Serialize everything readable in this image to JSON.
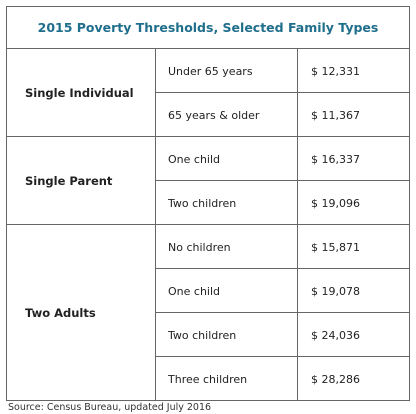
{
  "title": "2015 Poverty Thresholds, Selected Family Types",
  "groups": [
    {
      "label": "Single Individual",
      "rows": [
        [
          "Under 65 years",
          "$ 12,331"
        ],
        [
          "65 years & older",
          "$ 11,367"
        ]
      ]
    },
    {
      "label": "Single Parent",
      "rows": [
        [
          "One child",
          "$ 16,337"
        ],
        [
          "Two children",
          "$ 19,096"
        ]
      ]
    },
    {
      "label": "Two Adults",
      "rows": [
        [
          "No children",
          "$ 15,871"
        ],
        [
          "One child",
          "$ 19,078"
        ],
        [
          "Two children",
          "$ 24,036"
        ],
        [
          "Three children",
          "$ 28,286"
        ]
      ]
    }
  ],
  "source": "Source: Census Bureau, updated July 2016"
}
